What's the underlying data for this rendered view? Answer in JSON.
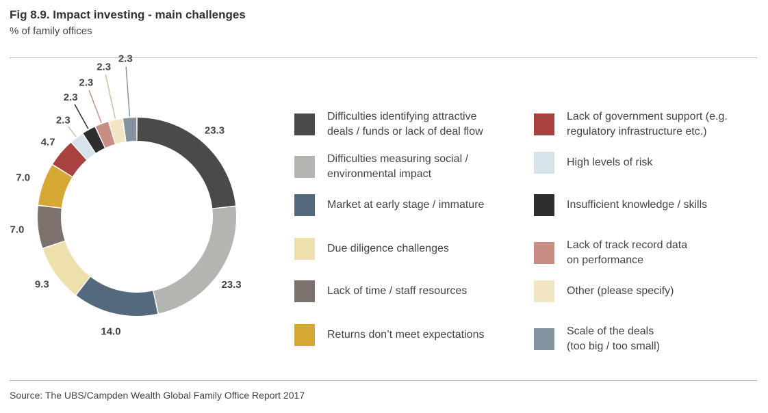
{
  "header": {
    "title": "Fig 8.9. Impact investing - main challenges",
    "subtitle": "% of family offices"
  },
  "footer": {
    "source": "Source: The UBS/Campden Wealth Global Family Office Report 2017"
  },
  "chart_data": {
    "type": "pie",
    "donut": true,
    "title": "Fig 8.9. Impact investing - main challenges",
    "subtitle": "% of family offices",
    "value_labels": [
      "23.3",
      "23.3",
      "14.0",
      "9.3",
      "7.0",
      "7.0",
      "4.7",
      "2.3",
      "2.3",
      "2.3",
      "2.3",
      "2.3"
    ],
    "slices": [
      {
        "label": "Difficulties identifying attractive\ndeals / funds or lack of deal flow",
        "value": 23.3,
        "color": "#4a4a48"
      },
      {
        "label": "Difficulties measuring social /\nenvironmental impact",
        "value": 23.3,
        "color": "#b4b4b1"
      },
      {
        "label": "Market at early stage / immature",
        "value": 14.0,
        "color": "#546a7c"
      },
      {
        "label": "Due diligence challenges",
        "value": 9.3,
        "color": "#eee0ad"
      },
      {
        "label": "Lack of time / staff resources",
        "value": 7.0,
        "color": "#7c716c"
      },
      {
        "label": "Returns don’t meet expectations",
        "value": 7.0,
        "color": "#d5a733"
      },
      {
        "label": "Lack of government support (e.g.\nregulatory infrastructure etc.)",
        "value": 4.7,
        "color": "#a8413f"
      },
      {
        "label": "High levels of risk",
        "value": 2.3,
        "color": "#d7e3ea"
      },
      {
        "label": "Insufficient knowledge / skills",
        "value": 2.3,
        "color": "#2e2e2e"
      },
      {
        "label": "Lack of track record data\non performance",
        "value": 2.3,
        "color": "#c98e83"
      },
      {
        "label": "Other (please specify)",
        "value": 2.3,
        "color": "#f2e6c6"
      },
      {
        "label": "Scale of the deals\n(too big / too small)",
        "value": 2.3,
        "color": "#8493a0"
      }
    ],
    "legend_position": "right"
  }
}
